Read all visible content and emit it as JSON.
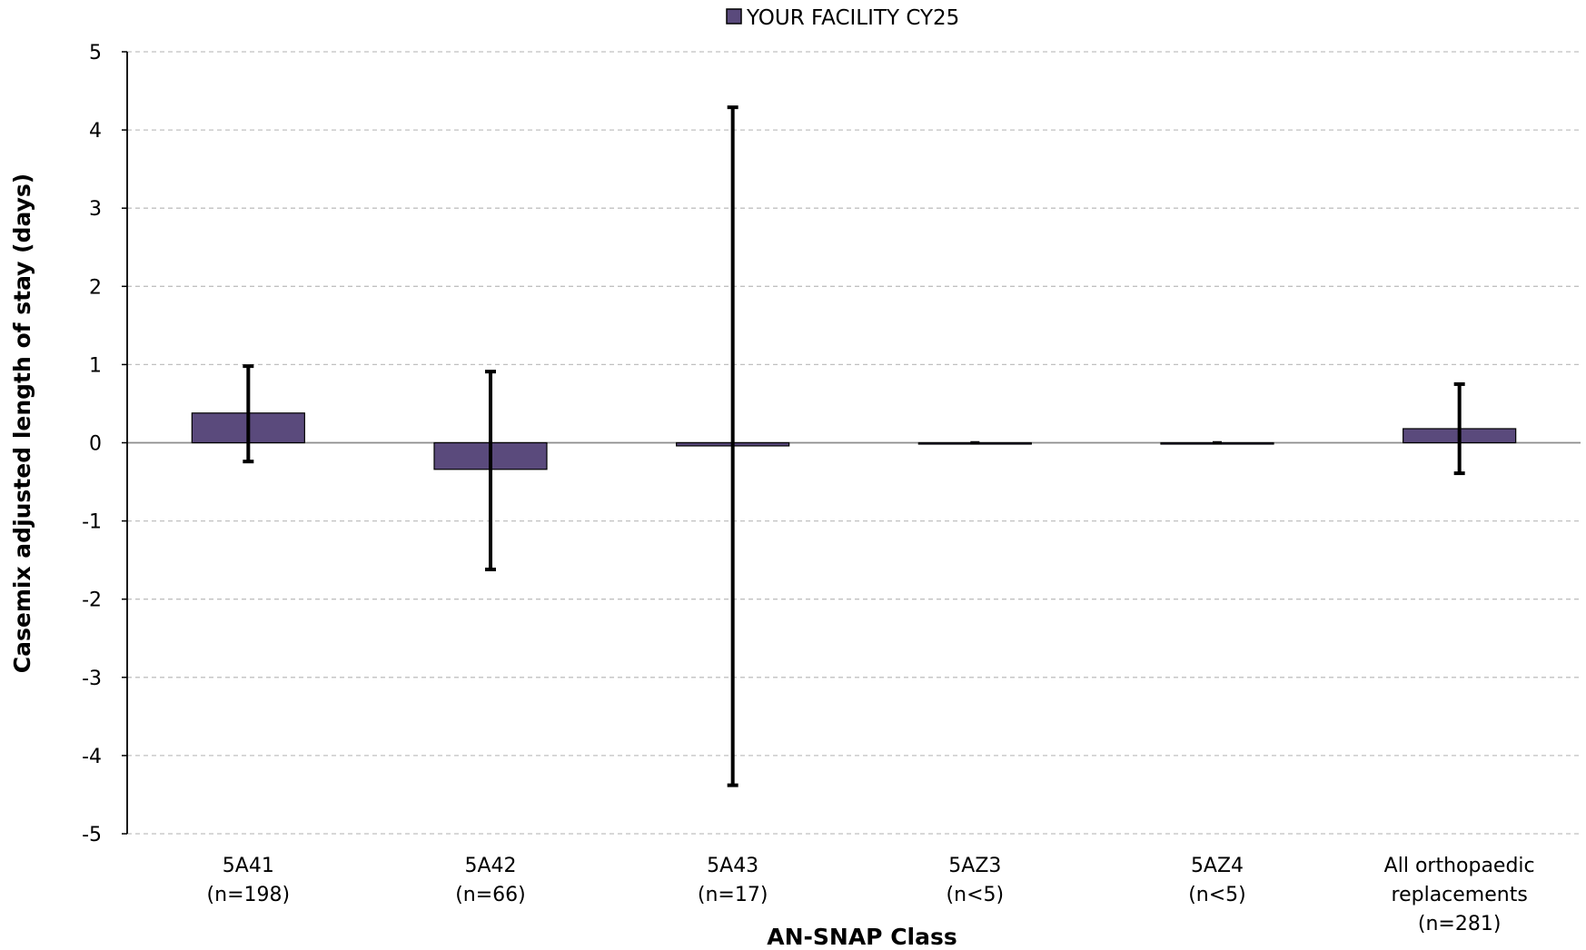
{
  "chart_data": {
    "type": "bar",
    "title": "",
    "xlabel": "AN-SNAP Class",
    "ylabel": "Casemix adjusted length of stay (days)",
    "ylim": [
      -5,
      5
    ],
    "yticks": [
      5,
      4,
      3,
      2,
      1,
      0,
      -1,
      -2,
      -3,
      -4,
      -5
    ],
    "grid": true,
    "legend_position": "top-center",
    "categories": [
      [
        "5A41",
        "(n=198)"
      ],
      [
        "5A42",
        "(n=66)"
      ],
      [
        "5A43",
        "(n=17)"
      ],
      [
        "5AZ3",
        "(n<5)"
      ],
      [
        "5AZ4",
        "(n<5)"
      ],
      [
        "All orthopaedic",
        "replacements",
        "(n=281)"
      ]
    ],
    "series": [
      {
        "name": "YOUR FACILITY CY25",
        "color": "#5a4a7c",
        "values": [
          0.38,
          -0.34,
          -0.04,
          0,
          0,
          0.18
        ],
        "error_low": [
          -0.24,
          -1.62,
          -4.38,
          0,
          0,
          -0.39
        ],
        "error_high": [
          0.98,
          0.91,
          4.29,
          0,
          0,
          0.75
        ]
      }
    ]
  }
}
